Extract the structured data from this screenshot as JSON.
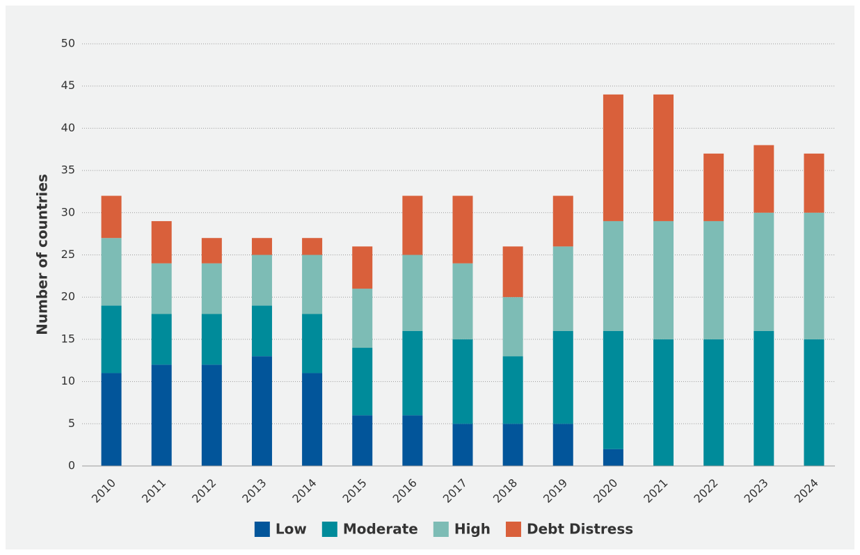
{
  "chart_data": {
    "type": "stacked_bar",
    "y_label": "Number of countries",
    "categories": [
      "2010",
      "2011",
      "2012",
      "2013",
      "2014",
      "2015",
      "2016",
      "2017",
      "2018",
      "2019",
      "2020",
      "2021",
      "2022",
      "2023",
      "2024"
    ],
    "series": [
      {
        "name": "Low",
        "color": "#02559a",
        "values": [
          11,
          12,
          12,
          13,
          11,
          6,
          6,
          5,
          5,
          5,
          2,
          0,
          0,
          0,
          0
        ]
      },
      {
        "name": "Moderate",
        "color": "#008b9a",
        "values": [
          8,
          6,
          6,
          6,
          7,
          8,
          10,
          10,
          8,
          11,
          14,
          15,
          15,
          16,
          15
        ]
      },
      {
        "name": "High",
        "color": "#7dbcb5",
        "values": [
          8,
          6,
          6,
          6,
          7,
          7,
          9,
          9,
          7,
          10,
          13,
          14,
          14,
          14,
          15
        ]
      },
      {
        "name": "Debt Distress",
        "color": "#d9603b",
        "values": [
          5,
          5,
          3,
          2,
          2,
          5,
          7,
          8,
          6,
          6,
          15,
          15,
          8,
          8,
          7
        ]
      }
    ],
    "ylim": [
      0,
      50
    ],
    "yticks": [
      0,
      5,
      10,
      15,
      20,
      25,
      30,
      35,
      40,
      45,
      50
    ],
    "grid": true,
    "legend": "bottom"
  }
}
